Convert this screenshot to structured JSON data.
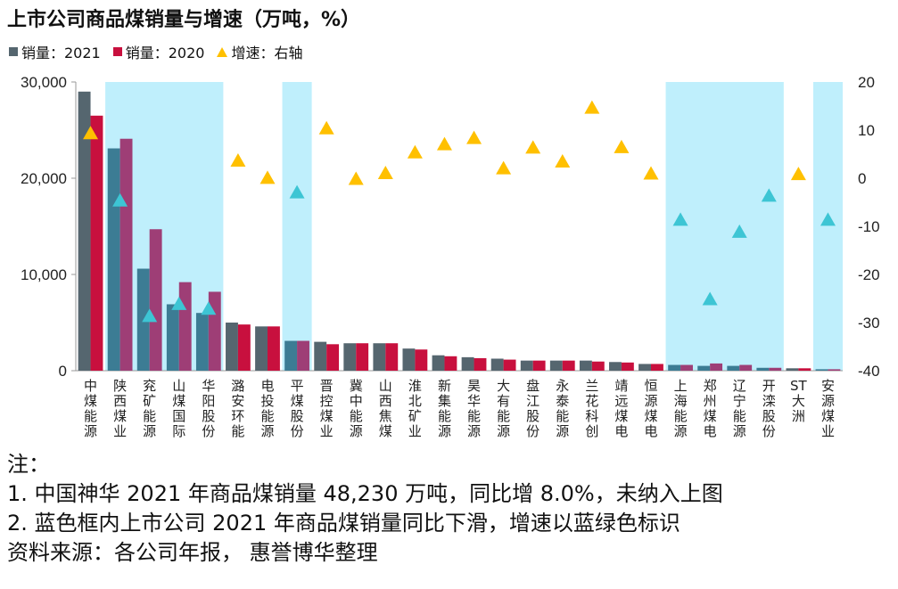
{
  "chart_data": {
    "type": "bar",
    "title": "上市公司商品煤销量与增速（万吨，%）",
    "legend": [
      {
        "name": "销量：2021",
        "color": "#55666F",
        "shape": "square"
      },
      {
        "name": "销量：2020",
        "color": "#C8103E",
        "shape": "square"
      },
      {
        "name": "增速：右轴",
        "color": "#FFC000",
        "shape": "triangle"
      }
    ],
    "categories": [
      "中煤能源",
      "陕西煤业",
      "兖矿能源",
      "山煤国际",
      "华阳股份",
      "潞安环能",
      "电投能源",
      "平煤股份",
      "晋控煤业",
      "冀中能源",
      "山西焦煤",
      "淮北矿业",
      "新集能源",
      "昊华能源",
      "大有能源",
      "盘江股份",
      "永泰能源",
      "兰花科创",
      "靖远煤电",
      "恒源煤电",
      "上海能源",
      "郑州煤电",
      "辽宁能源",
      "开滦股份",
      "ST大洲",
      "安源煤业"
    ],
    "series": [
      {
        "name": "销量：2021",
        "axis": "left",
        "values": [
          29000,
          23100,
          10600,
          6900,
          6000,
          5000,
          4600,
          3100,
          3000,
          2850,
          2850,
          2300,
          1600,
          1400,
          1250,
          1050,
          1050,
          1050,
          900,
          700,
          600,
          500,
          500,
          300,
          250,
          150
        ]
      },
      {
        "name": "销量：2020",
        "axis": "left",
        "values": [
          26500,
          24100,
          14700,
          9200,
          8200,
          4800,
          4600,
          3100,
          2750,
          2850,
          2850,
          2200,
          1500,
          1300,
          1150,
          1050,
          1050,
          950,
          850,
          700,
          600,
          750,
          600,
          300,
          250,
          150
        ]
      },
      {
        "name": "增速：右轴",
        "axis": "right",
        "type": "scatter",
        "values": [
          9.5,
          -4.5,
          -28.5,
          -26,
          -27,
          3.8,
          0.2,
          -2.8,
          10.5,
          0,
          1.2,
          5.5,
          7.2,
          8.5,
          2.2,
          6.5,
          3.6,
          14.8,
          6.6,
          1.1,
          -8.5,
          -25,
          -11,
          -3.5,
          1,
          -8.5
        ]
      }
    ],
    "highlight_bands": [
      [
        1,
        4
      ],
      [
        7,
        7
      ],
      [
        20,
        23
      ],
      [
        25,
        25
      ]
    ],
    "highlight_color": "#BFEFFC",
    "decline_colors": {
      "bar2021": "#3C7C94",
      "bar2020": "#9E3E76",
      "marker": "#3DC5D4"
    },
    "ylim_left": [
      0,
      30000
    ],
    "yticks_left": [
      "0",
      "10,000",
      "20,000",
      "30,000"
    ],
    "ylim_right": [
      -40,
      20
    ],
    "yticks_right": [
      "-40",
      "-30",
      "-20",
      "-10",
      "0",
      "10",
      "20"
    ]
  },
  "notes": [
    "注：",
    "1. 中国神华 2021 年商品煤销量 48,230 万吨，同比增 8.0%，未纳入上图",
    "2. 蓝色框内上市公司 2021 年商品煤销量同比下滑，增速以蓝绿色标识",
    "资料来源：各公司年报， 惠誉博华整理"
  ]
}
